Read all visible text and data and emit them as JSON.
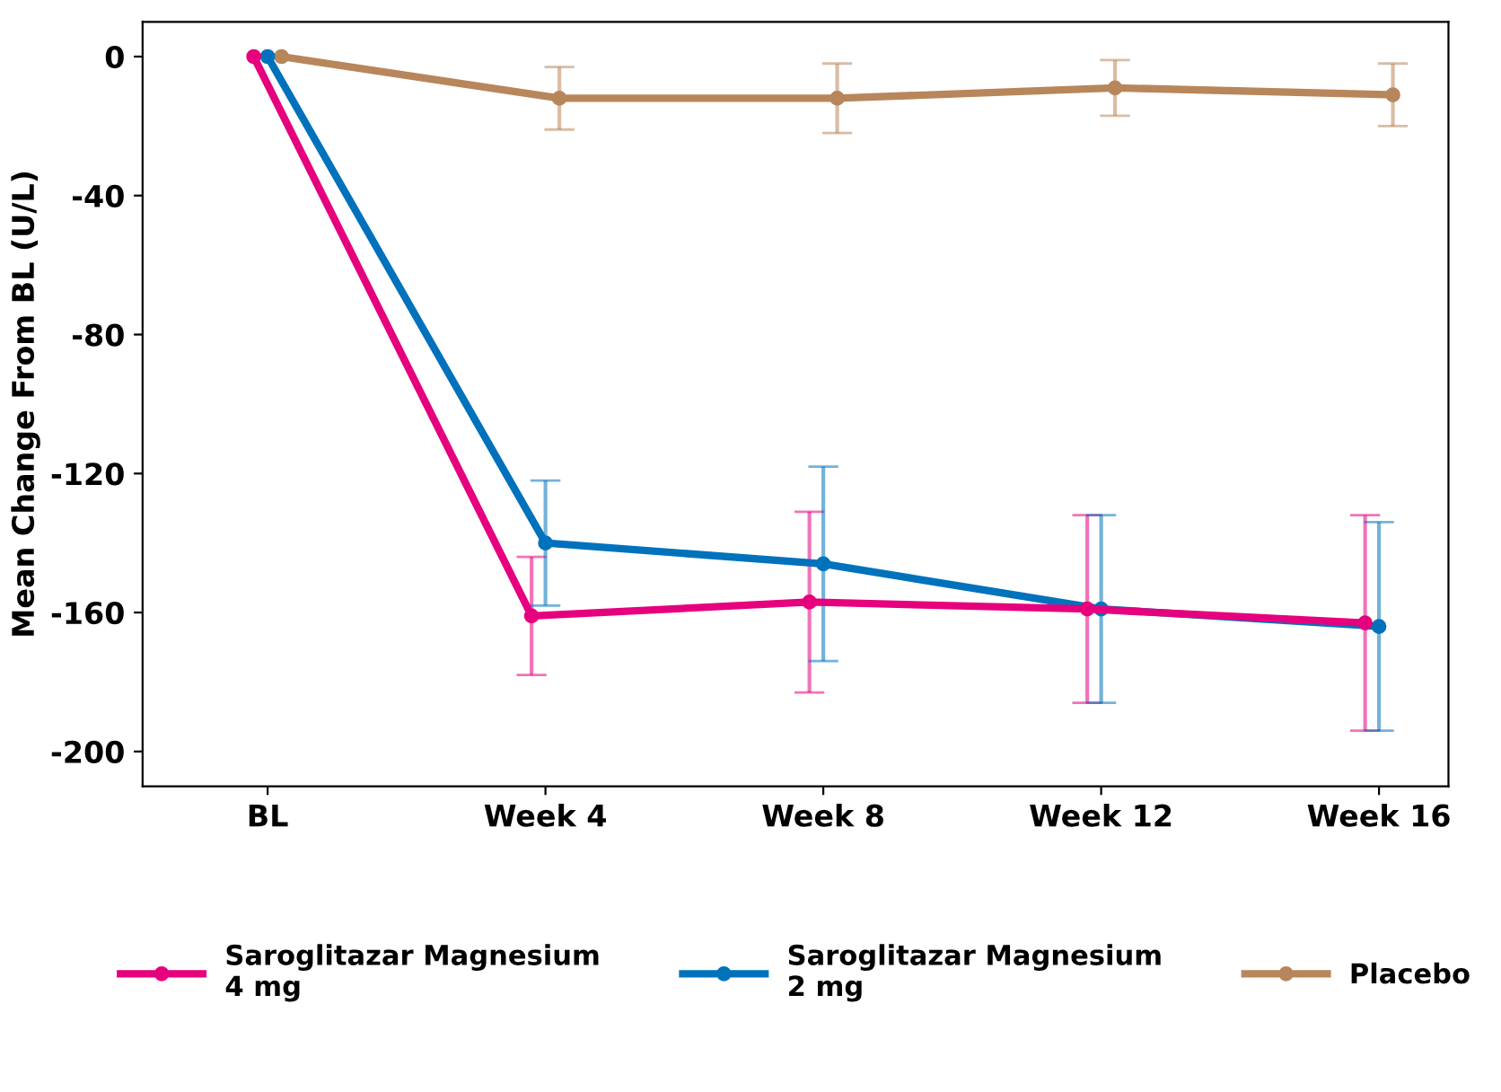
{
  "chart_data": {
    "type": "line",
    "ylabel": "Mean Change From BL (U/L)",
    "categories": [
      "BL",
      "Week 4",
      "Week 8",
      "Week 12",
      "Week 16"
    ],
    "series": [
      {
        "name": "Saroglitazar Magnesium\n4 mg",
        "color": "#e6007e",
        "values": [
          0,
          -161,
          -157,
          -159,
          -163
        ],
        "errors": [
          null,
          17,
          26,
          27,
          31
        ]
      },
      {
        "name": "Saroglitazar Magnesium\n2 mg",
        "color": "#0072bc",
        "values": [
          0,
          -140,
          -146,
          -159,
          -164
        ],
        "errors": [
          null,
          18,
          28,
          27,
          30
        ]
      },
      {
        "name": "Placebo",
        "color": "#b8865b",
        "values": [
          0,
          -12,
          -12,
          -9,
          -11
        ],
        "errors": [
          null,
          9,
          10,
          8,
          9
        ]
      }
    ],
    "ylim": [
      -210,
      10
    ],
    "yticks": [
      {
        "value": 0,
        "label": "0"
      },
      {
        "value": -40,
        "label": "-40"
      },
      {
        "value": -80,
        "label": "-80"
      },
      {
        "value": -120,
        "label": "-120"
      },
      {
        "value": -160,
        "label": "-160"
      },
      {
        "value": -200,
        "label": "-200"
      }
    ],
    "grid": false,
    "legend": "bottom",
    "marker": "circle",
    "line_style": "solid"
  }
}
